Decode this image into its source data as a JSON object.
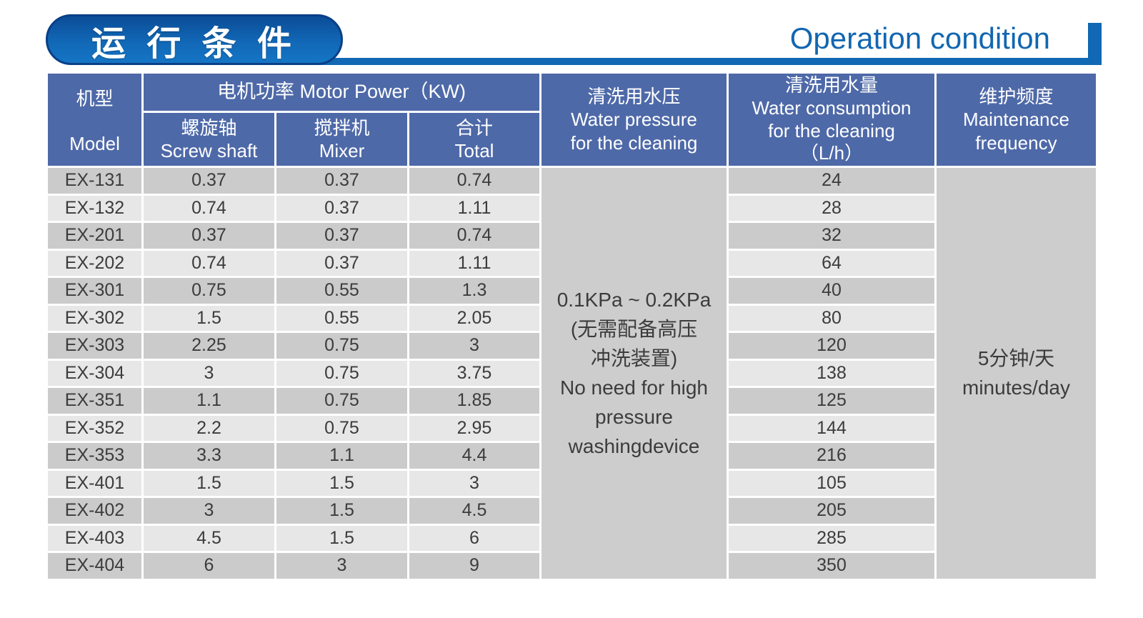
{
  "banner": {
    "title_zh": "运 行 条 件",
    "title_en": "Operation condition"
  },
  "colors": {
    "accent_blue": "#1168b4",
    "title_pill_border": "#0a3f86",
    "header_blue": "#4e69a8",
    "row_dark": "#cbcbcb",
    "row_light": "#e7e7e7",
    "merged_cell_gray": "#cdcdcd",
    "body_text": "#3c3c3c",
    "en_title_blue": "#1266b0"
  },
  "table": {
    "header": {
      "model_zh": "机型",
      "model_en": "Model",
      "motor_power": "电机功率  Motor Power（KW)",
      "screw_shaft_zh": "螺旋轴",
      "screw_shaft_en": "Screw shaft",
      "mixer_zh": "搅拌机",
      "mixer_en": "Mixer",
      "total_zh": "合计",
      "total_en": "Total",
      "water_pressure": [
        "清洗用水压",
        "Water pressure",
        "for the cleaning"
      ],
      "water_consumption": [
        "清洗用水量",
        "Water consumption",
        "for the cleaning",
        "（L/h）"
      ],
      "maintenance": [
        "维护频度",
        "Maintenance",
        "frequency"
      ]
    },
    "water_pressure_cell": {
      "lines": [
        "0.1KPa ~ 0.2KPa",
        "(无需配备高压",
        "冲洗装置)",
        "No need for high",
        "pressure",
        "washingdevice"
      ]
    },
    "maintenance_cell": {
      "lines": [
        "5分钟/天",
        "minutes/day"
      ]
    },
    "rows": [
      {
        "model": "EX-131",
        "screw_shaft": "0.37",
        "mixer": "0.37",
        "total": "0.74",
        "water_consumption": "24"
      },
      {
        "model": "EX-132",
        "screw_shaft": "0.74",
        "mixer": "0.37",
        "total": "1.11",
        "water_consumption": "28"
      },
      {
        "model": "EX-201",
        "screw_shaft": "0.37",
        "mixer": "0.37",
        "total": "0.74",
        "water_consumption": "32"
      },
      {
        "model": "EX-202",
        "screw_shaft": "0.74",
        "mixer": "0.37",
        "total": "1.11",
        "water_consumption": "64"
      },
      {
        "model": "EX-301",
        "screw_shaft": "0.75",
        "mixer": "0.55",
        "total": "1.3",
        "water_consumption": "40"
      },
      {
        "model": "EX-302",
        "screw_shaft": "1.5",
        "mixer": "0.55",
        "total": "2.05",
        "water_consumption": "80"
      },
      {
        "model": "EX-303",
        "screw_shaft": "2.25",
        "mixer": "0.75",
        "total": "3",
        "water_consumption": "120"
      },
      {
        "model": "EX-304",
        "screw_shaft": "3",
        "mixer": "0.75",
        "total": "3.75",
        "water_consumption": "138"
      },
      {
        "model": "EX-351",
        "screw_shaft": "1.1",
        "mixer": "0.75",
        "total": "1.85",
        "water_consumption": "125"
      },
      {
        "model": "EX-352",
        "screw_shaft": "2.2",
        "mixer": "0.75",
        "total": "2.95",
        "water_consumption": "144"
      },
      {
        "model": "EX-353",
        "screw_shaft": "3.3",
        "mixer": "1.1",
        "total": "4.4",
        "water_consumption": "216"
      },
      {
        "model": "EX-401",
        "screw_shaft": "1.5",
        "mixer": "1.5",
        "total": "3",
        "water_consumption": "105"
      },
      {
        "model": "EX-402",
        "screw_shaft": "3",
        "mixer": "1.5",
        "total": "4.5",
        "water_consumption": "205"
      },
      {
        "model": "EX-403",
        "screw_shaft": "4.5",
        "mixer": "1.5",
        "total": "6",
        "water_consumption": "285"
      },
      {
        "model": "EX-404",
        "screw_shaft": "6",
        "mixer": "3",
        "total": "9",
        "water_consumption": "350"
      }
    ]
  }
}
